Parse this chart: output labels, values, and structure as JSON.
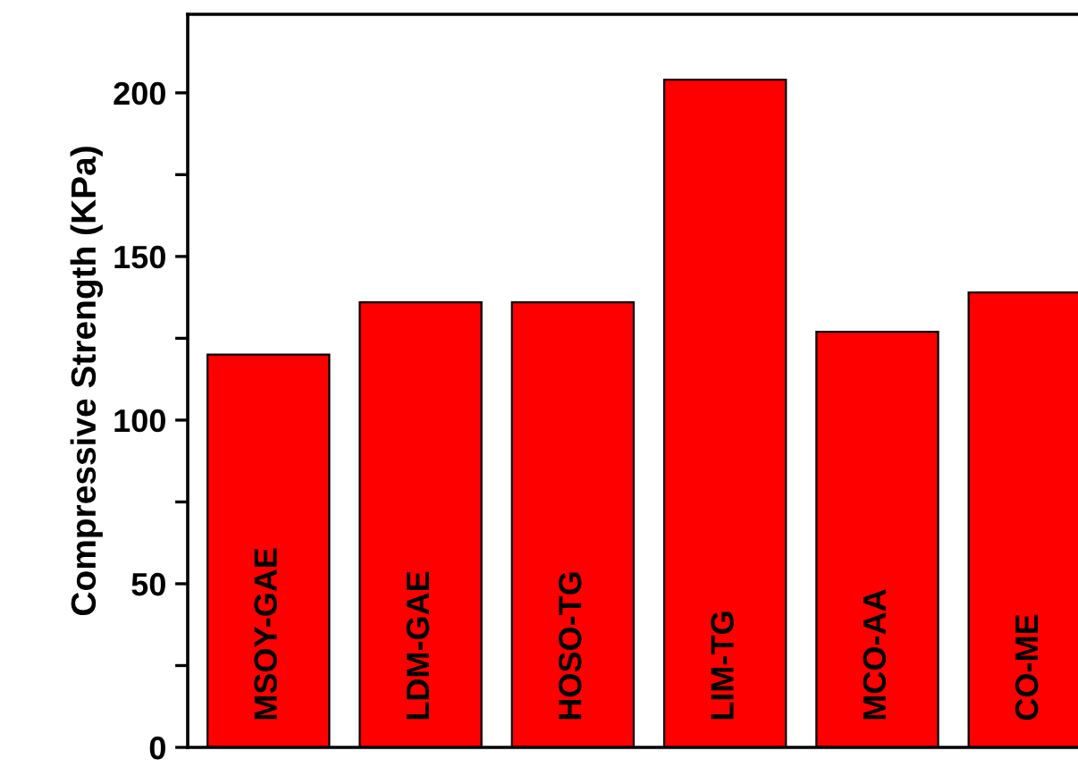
{
  "chart_data": {
    "type": "bar",
    "ylabel": "Compressive Strength (KPa)",
    "categories": [
      "MSOY-GAE",
      "LDM-GAE",
      "HOSO-TG",
      "LIM-TG",
      "MCO-AA",
      "CO-ME"
    ],
    "values": [
      120,
      136,
      136,
      204,
      127,
      139
    ],
    "color": "#ff0000",
    "ylim": [
      0,
      224
    ],
    "yticks": [
      0,
      {
        "value": 25,
        "label": null
      },
      50,
      {
        "value": 75,
        "label": null
      },
      100,
      {
        "value": 125,
        "label": null
      },
      150,
      {
        "value": 175,
        "label": null
      },
      200
    ],
    "grid": false
  }
}
